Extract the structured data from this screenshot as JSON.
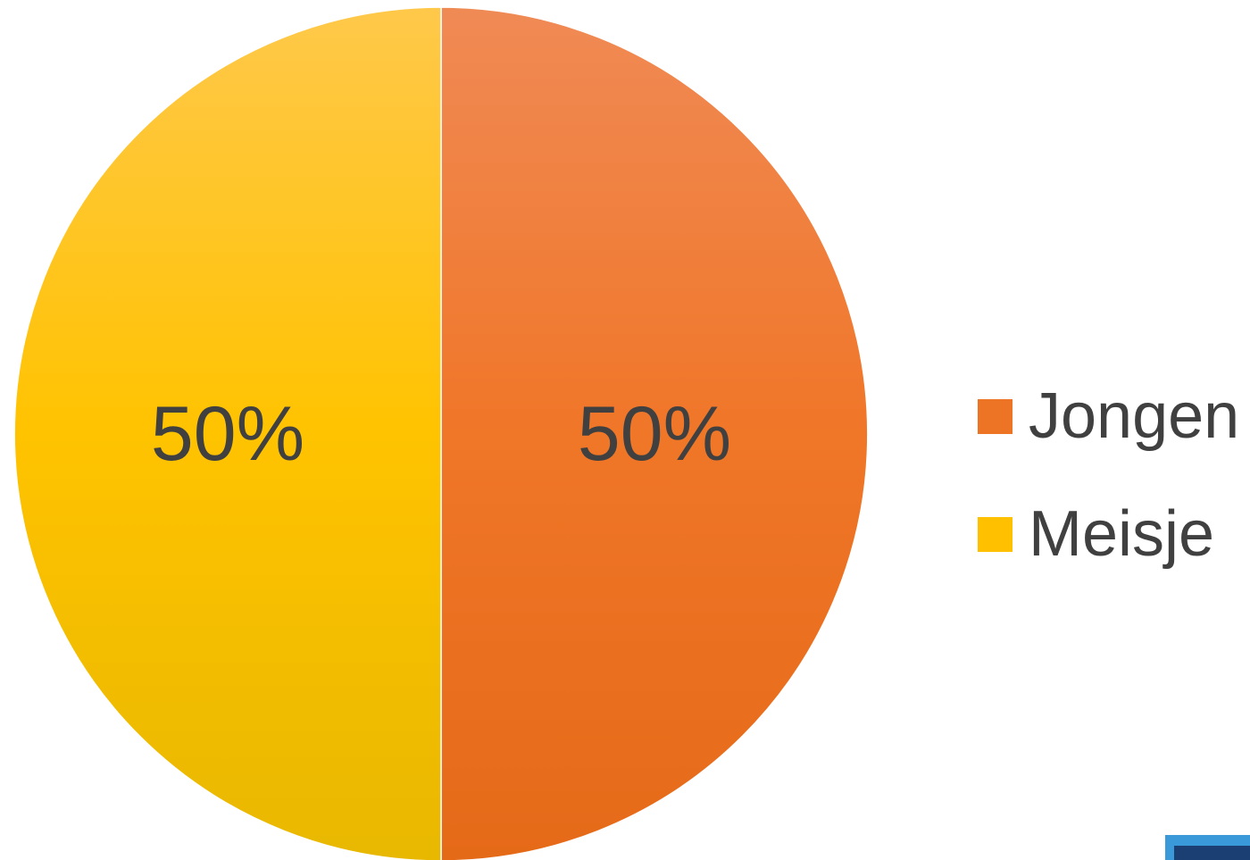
{
  "chart_data": {
    "type": "pie",
    "categories": [
      "Jongen",
      "Meisje"
    ],
    "values": [
      50,
      50
    ],
    "data_labels": [
      "50%",
      "50%"
    ],
    "colors": [
      "#EE7425",
      "#FFC000"
    ],
    "legend": {
      "placement": "right",
      "entries": [
        "Jongen",
        "Meisje"
      ]
    }
  },
  "decoration": {
    "corner_colors": [
      "#3a9ad9",
      "#1b3f73"
    ]
  }
}
